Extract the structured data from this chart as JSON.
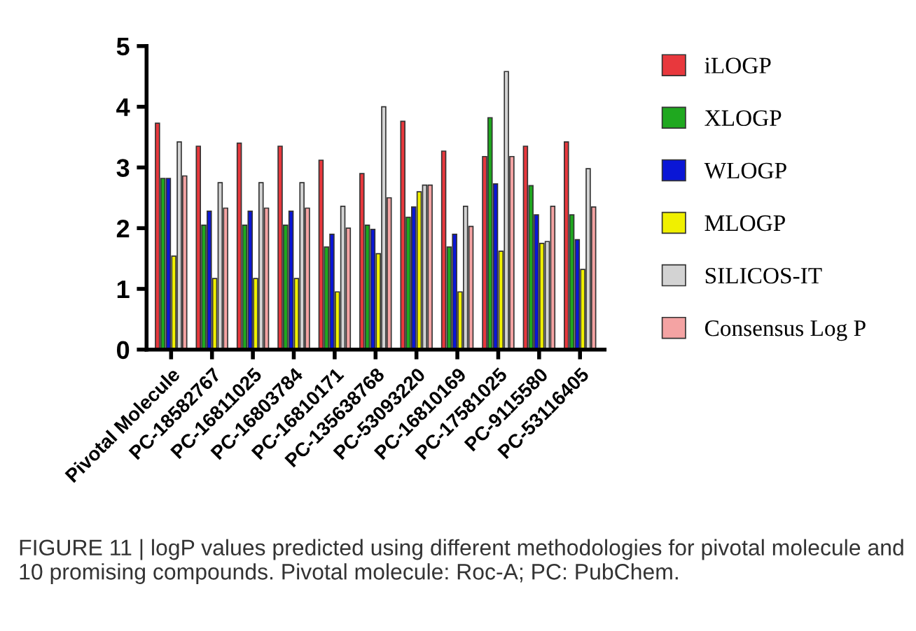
{
  "chart_data": {
    "type": "bar",
    "categories": [
      "Pivotal Molecule",
      "PC-18582767",
      "PC-16811025",
      "PC-16803784",
      "PC-16810171",
      "PC-135638768",
      "PC-53093220",
      "PC-16810169",
      "PC-17581025",
      "PC-9115580",
      "PC-53116405"
    ],
    "series": [
      {
        "name": "iLOGP",
        "color": "#e8383d",
        "values": [
          3.73,
          3.35,
          3.4,
          3.35,
          3.12,
          2.9,
          3.76,
          3.27,
          3.18,
          3.35,
          3.42
        ]
      },
      {
        "name": "XLOGP",
        "color": "#1fa81f",
        "values": [
          2.82,
          2.05,
          2.05,
          2.05,
          1.69,
          2.05,
          2.18,
          1.69,
          3.82,
          2.7,
          2.22
        ]
      },
      {
        "name": "WLOGP",
        "color": "#0a16d6",
        "values": [
          2.82,
          2.28,
          2.28,
          2.28,
          1.9,
          1.98,
          2.35,
          1.9,
          2.73,
          2.22,
          1.81
        ]
      },
      {
        "name": "MLOGP",
        "color": "#f0f000",
        "values": [
          1.54,
          1.17,
          1.17,
          1.17,
          0.95,
          1.58,
          2.6,
          0.95,
          1.62,
          1.75,
          1.32
        ]
      },
      {
        "name": "SILICOS-IT",
        "color": "#d3d3d3",
        "values": [
          3.42,
          2.75,
          2.75,
          2.75,
          2.36,
          4.0,
          2.71,
          2.36,
          4.58,
          1.78,
          2.98
        ]
      },
      {
        "name": "Consensus Log P",
        "color": "#f4a3a3",
        "values": [
          2.86,
          2.33,
          2.33,
          2.33,
          2.0,
          2.5,
          2.71,
          2.03,
          3.18,
          2.36,
          2.35
        ]
      }
    ],
    "ylim": [
      0,
      5
    ],
    "yticks": [
      0,
      1,
      2,
      3,
      4,
      5
    ],
    "grid": false,
    "legend": "right",
    "annotations": [
      "FIGURE 11 | logP values predicted using different methodologies for pivotal molecule and 10 promising compounds. Pivotal molecule: Roc-A; PC: PubChem."
    ]
  }
}
